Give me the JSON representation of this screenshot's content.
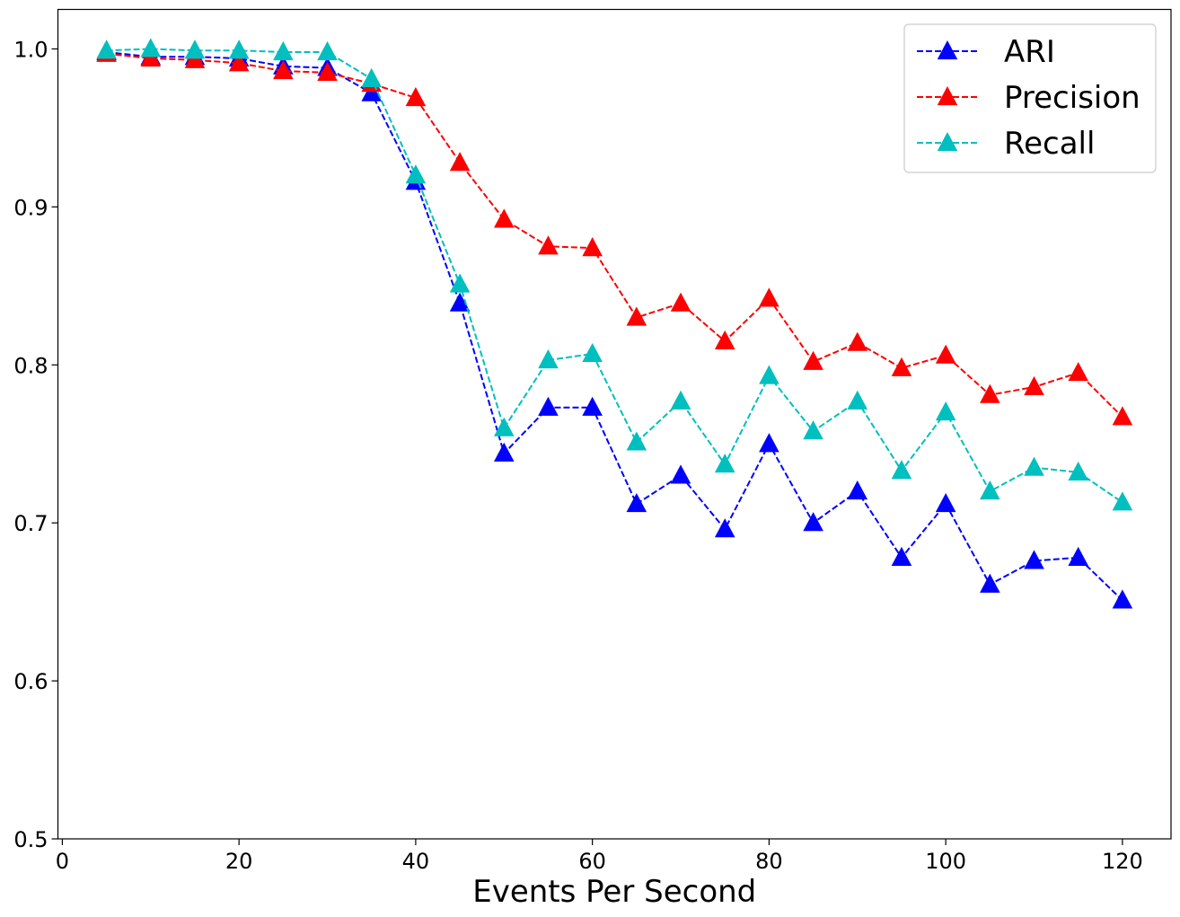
{
  "chart_data": {
    "type": "line",
    "title": "",
    "xlabel": "Events Per Second",
    "ylabel": "",
    "xlim": [
      -0.5,
      125.5
    ],
    "ylim": [
      0.5,
      1.025
    ],
    "xticks": [
      0,
      20,
      40,
      60,
      80,
      100,
      120
    ],
    "xtick_labels": [
      "0",
      "20",
      "40",
      "60",
      "80",
      "100",
      "120"
    ],
    "yticks": [
      0.5,
      0.6,
      0.7,
      0.8,
      0.9,
      1.0
    ],
    "ytick_labels": [
      "0.5",
      "0.6",
      "0.7",
      "0.8",
      "0.9",
      "1.0"
    ],
    "grid": false,
    "legend_position": "top-right",
    "marker": "triangle-up",
    "line_style": "dashed",
    "x": [
      5,
      10,
      15,
      20,
      25,
      30,
      35,
      40,
      45,
      50,
      55,
      60,
      65,
      70,
      75,
      80,
      85,
      90,
      95,
      100,
      105,
      110,
      115,
      120
    ],
    "series": [
      {
        "name": "ARI",
        "color": "#0000ff",
        "values": [
          0.998,
          0.995,
          0.995,
          0.994,
          0.989,
          0.988,
          0.972,
          0.916,
          0.839,
          0.744,
          0.773,
          0.773,
          0.712,
          0.73,
          0.696,
          0.75,
          0.7,
          0.72,
          0.678,
          0.712,
          0.661,
          0.676,
          0.678,
          0.651
        ]
      },
      {
        "name": "Precision",
        "color": "#ff0000",
        "values": [
          0.997,
          0.994,
          0.993,
          0.991,
          0.986,
          0.985,
          0.978,
          0.969,
          0.928,
          0.892,
          0.875,
          0.874,
          0.83,
          0.839,
          0.815,
          0.842,
          0.802,
          0.814,
          0.798,
          0.806,
          0.781,
          0.786,
          0.795,
          0.767
        ]
      },
      {
        "name": "Recall",
        "color": "#00bfbf",
        "values": [
          0.999,
          1.0,
          0.999,
          0.999,
          0.998,
          0.998,
          0.981,
          0.92,
          0.851,
          0.76,
          0.803,
          0.807,
          0.751,
          0.777,
          0.737,
          0.793,
          0.758,
          0.777,
          0.733,
          0.77,
          0.72,
          0.735,
          0.732,
          0.713
        ]
      }
    ]
  }
}
